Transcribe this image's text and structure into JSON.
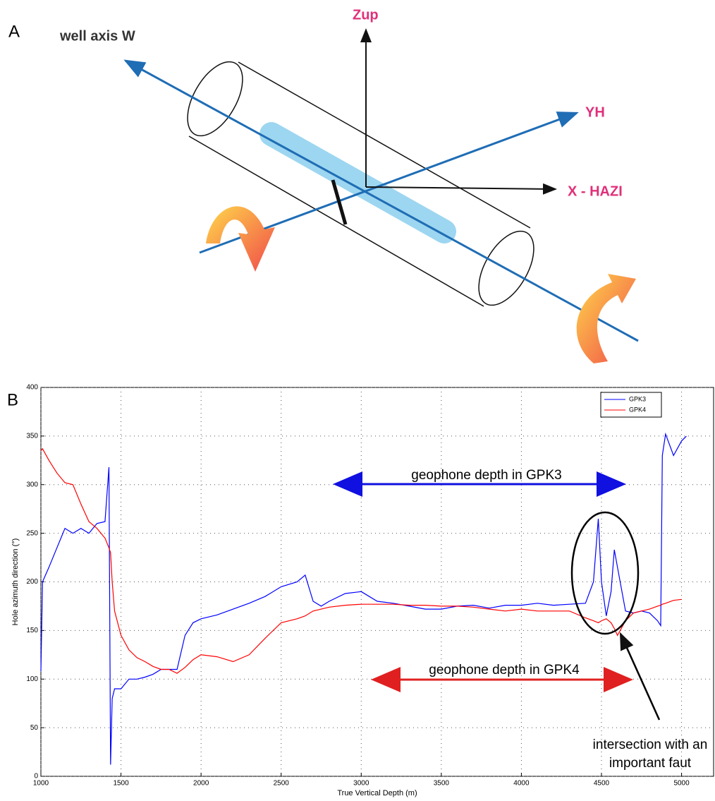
{
  "panel_a": {
    "label": "A",
    "well_axis": "well axis W",
    "z_axis": "Zup",
    "y_axis": "YH",
    "x_axis": "X - HAZI"
  },
  "panel_b_label": "B",
  "chart_data": {
    "type": "line",
    "x_label": "True Vertical Depth (m)",
    "y_label": "Hole azimuth direction (°)",
    "x": [
      1000,
      1010,
      1050,
      1100,
      1150,
      1200,
      1250,
      1300,
      1350,
      1400,
      1425,
      1435,
      1445,
      1460,
      1500,
      1550,
      1600,
      1650,
      1700,
      1750,
      1800,
      1850,
      1900,
      1950,
      2000,
      2100,
      2200,
      2300,
      2400,
      2500,
      2600,
      2650,
      2700,
      2750,
      2800,
      2900,
      3000,
      3100,
      3200,
      3300,
      3400,
      3500,
      3600,
      3700,
      3800,
      3900,
      4000,
      4100,
      4200,
      4300,
      4400,
      4450,
      4480,
      4500,
      4530,
      4560,
      4580,
      4600,
      4650,
      4700,
      4750,
      4800,
      4850,
      4870,
      4880,
      4900,
      4950,
      5000,
      5030
    ],
    "series": [
      {
        "name": "GPK3",
        "color": "#0000ff",
        "values": [
          108,
          200,
          215,
          235,
          255,
          250,
          255,
          250,
          260,
          262,
          318,
          12,
          80,
          90,
          90,
          100,
          100,
          102,
          105,
          110,
          110,
          110,
          145,
          158,
          162,
          166,
          172,
          178,
          185,
          195,
          200,
          207,
          180,
          175,
          180,
          188,
          190,
          180,
          178,
          175,
          172,
          172,
          175,
          176,
          173,
          176,
          176,
          178,
          176,
          177,
          178,
          200,
          265,
          200,
          165,
          190,
          233,
          215,
          170,
          168,
          170,
          168,
          160,
          155,
          330,
          352,
          330,
          345,
          350
        ]
      },
      {
        "name": "GPK4",
        "color": "#ff0000",
        "values": [
          335,
          337,
          325,
          312,
          302,
          300,
          280,
          262,
          255,
          245,
          235,
          230,
          200,
          170,
          145,
          130,
          122,
          118,
          113,
          110,
          110,
          106,
          112,
          120,
          125,
          123,
          118,
          125,
          142,
          158,
          162,
          165,
          170,
          172,
          174,
          176,
          177,
          177,
          177,
          176,
          176,
          175,
          175,
          174,
          172,
          170,
          172,
          170,
          170,
          170,
          163,
          160,
          158,
          160,
          162,
          158,
          152,
          145,
          160,
          168,
          170,
          172,
          175,
          176,
          177,
          178,
          181,
          182,
          null
        ]
      }
    ],
    "xlim": [
      1000,
      5200
    ],
    "xticks": [
      1000,
      1500,
      2000,
      2500,
      3000,
      3500,
      4000,
      4500,
      5000
    ],
    "ylim": [
      0,
      400
    ],
    "yticks": [
      0,
      50,
      100,
      150,
      200,
      250,
      300,
      350,
      400
    ],
    "grid": true,
    "legend": "upper right",
    "annotations": {
      "gpk3_range": "geophone depth in GPK3",
      "gpk4_range": "geophone depth in GPK4",
      "fault_line1": "intersection with an",
      "fault_line2": "important faut"
    }
  }
}
